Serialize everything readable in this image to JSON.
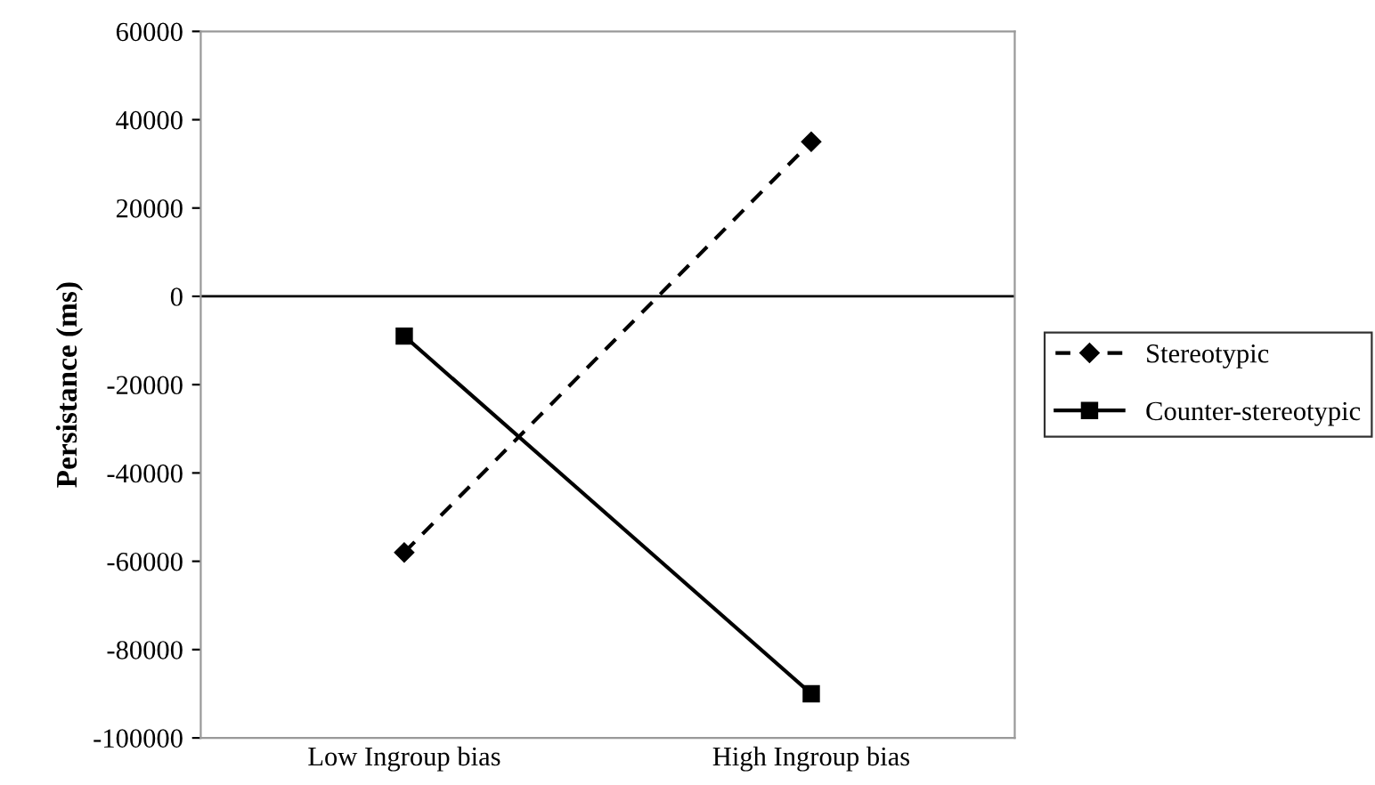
{
  "chart_data": {
    "type": "line",
    "ylabel": "Persistance (ms)",
    "categories": [
      "Low Ingroup bias",
      "High Ingroup bias"
    ],
    "series": [
      {
        "name": "Stereotypic",
        "color": "#000000",
        "values": [
          -58000,
          35000
        ],
        "marker": "diamond",
        "line_style": "dashed"
      },
      {
        "name": "Counter-stereotypic",
        "color": "#000000",
        "values": [
          -9000,
          -90000
        ],
        "marker": "square",
        "line_style": "solid"
      }
    ],
    "ylim": [
      -100000,
      60000
    ],
    "yticks": [
      -100000,
      -80000,
      -60000,
      -40000,
      -20000,
      0,
      20000,
      40000,
      60000
    ],
    "ref_lines": [
      {
        "axis": "y",
        "value": 0,
        "color": "#000000"
      }
    ],
    "grid": false,
    "legend": "right"
  }
}
